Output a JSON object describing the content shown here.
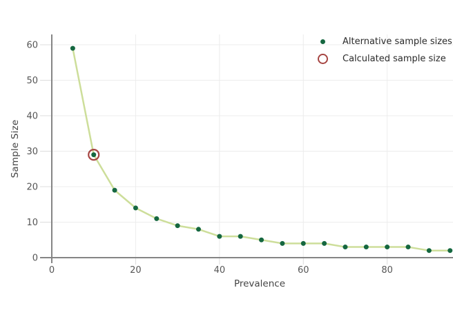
{
  "chart_data": {
    "type": "line",
    "xlabel": "Prevalence",
    "ylabel": "Sample Size",
    "x": [
      5,
      10,
      15,
      20,
      25,
      30,
      35,
      40,
      45,
      50,
      55,
      60,
      65,
      70,
      75,
      80,
      85,
      90,
      95
    ],
    "series": [
      {
        "name": "Alternative sample sizes",
        "values": [
          59,
          29,
          19,
          14,
          11,
          9,
          8,
          6,
          6,
          5,
          4,
          4,
          4,
          3,
          3,
          3,
          3,
          2,
          2
        ]
      }
    ],
    "calculated_point": {
      "x": 10,
      "y": 29,
      "name": "Calculated sample size"
    },
    "xticks": [
      0,
      20,
      40,
      60,
      80
    ],
    "yticks": [
      0,
      10,
      20,
      30,
      40,
      50,
      60
    ],
    "xlim": [
      0,
      95.7
    ],
    "ylim": [
      0,
      62.9
    ],
    "grid": true,
    "legend_position": "top-right",
    "colors": {
      "line": "#cdde9a",
      "marker": "#156740",
      "calculated_ring": "#a64542",
      "axis": "#848484",
      "gridline": "#ececec",
      "tick": "#dcdcdc",
      "tick_label": "#555555",
      "axis_label": "#444444",
      "legend_text": "#2a2a2a",
      "background": "#ffffff"
    }
  },
  "legend": {
    "items": [
      {
        "label": "Alternative sample sizes",
        "marker": "dot-icon"
      },
      {
        "label": "Calculated sample size",
        "marker": "ring-icon"
      }
    ]
  }
}
